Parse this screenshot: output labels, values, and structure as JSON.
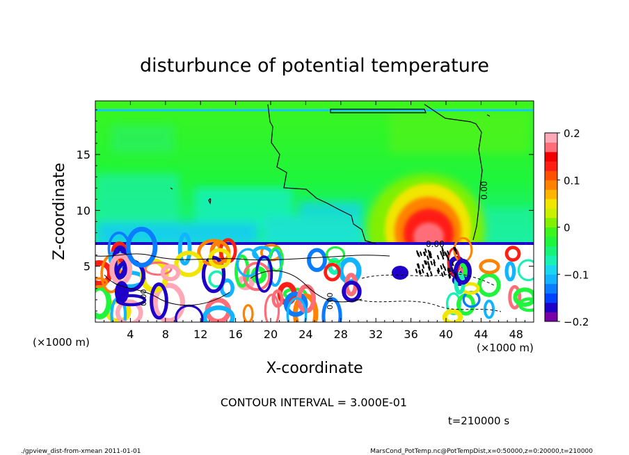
{
  "chart_data": {
    "type": "heatmap",
    "title": "disturbunce of potential temperature",
    "xlabel": "X-coordinate",
    "ylabel": "Z-coordinate",
    "x_unit": "(×1000 m)",
    "z_unit": "(×1000 m)",
    "xlim": [
      0,
      50
    ],
    "ylim": [
      0,
      19.8
    ],
    "x_ticks": [
      4,
      8,
      12,
      16,
      20,
      24,
      28,
      32,
      36,
      40,
      44,
      48
    ],
    "y_ticks": [
      5,
      10,
      15
    ],
    "colorbar": {
      "range": [
        -0.2,
        0.2
      ],
      "ticks": [
        0.2,
        0.1,
        0,
        -0.1,
        -0.2
      ],
      "tick_labels": [
        "0.2",
        "0.1",
        "0",
        "−0.1",
        "−0.2"
      ],
      "colors": [
        "#7a00a8",
        "#1e00c8",
        "#0040ff",
        "#0a7cff",
        "#12b4ff",
        "#1ad6f0",
        "#19f0b4",
        "#18f278",
        "#1ef53c",
        "#3cf51e",
        "#82f000",
        "#c8f000",
        "#f0e600",
        "#ffb400",
        "#ff8200",
        "#ff5000",
        "#ff1e14",
        "#f00000",
        "#ff6e78",
        "#ffa8b8"
      ]
    },
    "contour_interval": "CONTOUR INTERVAL = 3.000E-01",
    "contour_labels": [
      "0.00",
      "0.00",
      "0.00",
      "0.00"
    ],
    "time_label": "t=210000 s",
    "features": [
      {
        "name": "warm anomaly above inversion",
        "x_center": 37.5,
        "z_center": 7.8,
        "peak": 0.2
      },
      {
        "name": "inversion layer",
        "z": 7.0
      },
      {
        "name": "convective mixed layer",
        "z_range": [
          0,
          7
        ]
      },
      {
        "name": "upper boundary layer",
        "z": 19.2
      }
    ]
  },
  "footer": {
    "left": "./gpview_dist-from-xmean  2011-01-01",
    "right": "MarsCond_PotTemp.nc@PotTempDist,x=0:50000,z=0:20000,t=210000"
  }
}
